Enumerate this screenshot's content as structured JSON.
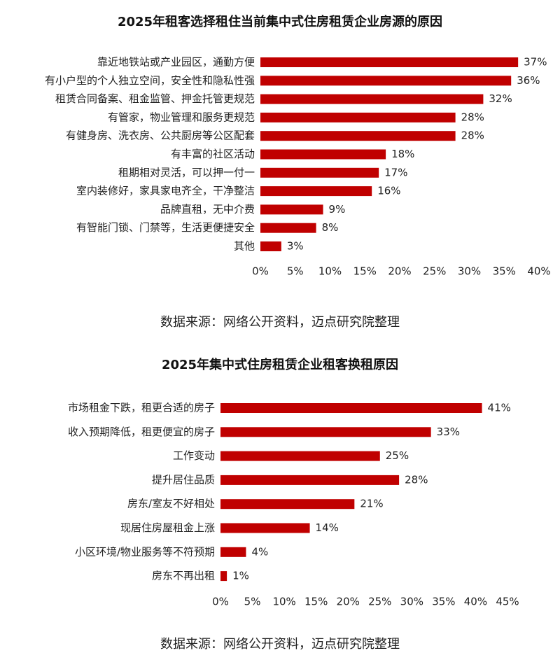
{
  "chart_data": [
    {
      "type": "hbar",
      "title": "2025年租客选择租住当前集中式住房租赁企业房源的原因",
      "categories": [
        "靠近地铁站或产业园区，通勤方便",
        "有小户型的个人独立空间，安全性和隐私性强",
        "租赁合同备案、租金监管、押金托管更规范",
        "有管家，物业管理和服务更规范",
        "有健身房、洗衣房、公共厨房等公区配套",
        "有丰富的社区活动",
        "租期相对灵活，可以押一付一",
        "室内装修好，家具家电齐全，干净整洁",
        "品牌直租，无中介费",
        "有智能门锁、门禁等，生活更便捷安全",
        "其他"
      ],
      "values": [
        37,
        36,
        32,
        28,
        28,
        18,
        17,
        16,
        9,
        8,
        3
      ],
      "value_labels": [
        "37%",
        "36%",
        "32%",
        "28%",
        "28%",
        "18%",
        "17%",
        "16%",
        "9%",
        "8%",
        "3%"
      ],
      "color": "#c00000",
      "xlim": [
        0,
        40
      ],
      "xticks": [
        {
          "value": 0,
          "label": "0%"
        },
        {
          "value": 5,
          "label": "5%"
        },
        {
          "value": 10,
          "label": "10%"
        },
        {
          "value": 15,
          "label": "15%"
        },
        {
          "value": 20,
          "label": "20%"
        },
        {
          "value": 25,
          "label": "25%"
        },
        {
          "value": 30,
          "label": "30%"
        },
        {
          "value": 35,
          "label": "35%"
        },
        {
          "value": 40,
          "label": "40%"
        }
      ],
      "source": "数据来源：网络公开资料，迈点研究院整理"
    },
    {
      "type": "hbar",
      "title": "2025年集中式住房租赁企业租客换租原因",
      "categories": [
        "市场租金下跌，租更合适的房子",
        "收入预期降低，租更便宜的房子",
        "工作变动",
        "提升居住品质",
        "房东/室友不好相处",
        "现居住房屋租金上涨",
        "小区环境/物业服务等不符预期",
        "房东不再出租"
      ],
      "values": [
        41,
        33,
        25,
        28,
        21,
        14,
        4,
        1
      ],
      "value_labels": [
        "41%",
        "33%",
        "25%",
        "28%",
        "21%",
        "14%",
        "4%",
        "1%"
      ],
      "color": "#c00000",
      "xlim": [
        0,
        45
      ],
      "xticks": [
        {
          "value": 0,
          "label": "0%"
        },
        {
          "value": 5,
          "label": "5%"
        },
        {
          "value": 10,
          "label": "10%"
        },
        {
          "value": 15,
          "label": "15%"
        },
        {
          "value": 20,
          "label": "20%"
        },
        {
          "value": 25,
          "label": "25%"
        },
        {
          "value": 30,
          "label": "30%"
        },
        {
          "value": 35,
          "label": "35%"
        },
        {
          "value": 40,
          "label": "40%"
        },
        {
          "value": 45,
          "label": "45%"
        }
      ],
      "source": "数据来源：网络公开资料，迈点研究院整理"
    }
  ]
}
